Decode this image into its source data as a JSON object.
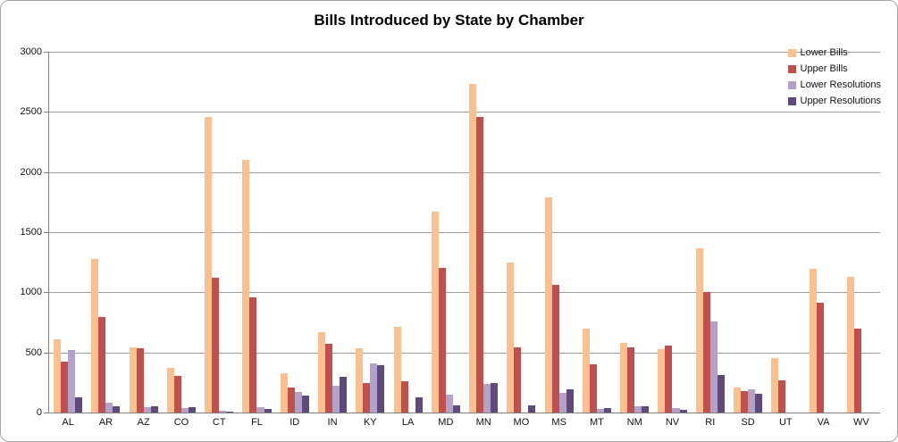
{
  "chart_data": {
    "type": "bar",
    "title": "Bills Introduced by State by Chamber",
    "xlabel": "",
    "ylabel": "",
    "ylim": [
      0,
      3000
    ],
    "yticks": [
      0,
      500,
      1000,
      1500,
      2000,
      2500,
      3000
    ],
    "grid": true,
    "legend_position": "top-right",
    "categories": [
      "AL",
      "AR",
      "AZ",
      "CO",
      "CT",
      "FL",
      "ID",
      "IN",
      "KY",
      "LA",
      "MD",
      "MN",
      "MO",
      "MS",
      "MT",
      "NM",
      "NV",
      "RI",
      "SD",
      "UT",
      "VA",
      "WV"
    ],
    "series": [
      {
        "name": "Lower Bills",
        "color": "#FAC090",
        "values": [
          610,
          1280,
          545,
          370,
          2455,
          2105,
          330,
          670,
          535,
          715,
          1670,
          2730,
          1250,
          1790,
          700,
          580,
          525,
          1365,
          210,
          455,
          1195,
          1130
        ]
      },
      {
        "name": "Upper Bills",
        "color": "#C0504D",
        "values": [
          420,
          795,
          535,
          305,
          1125,
          960,
          205,
          575,
          245,
          260,
          1205,
          2455,
          545,
          1060,
          400,
          545,
          560,
          1005,
          175,
          270,
          915,
          700
        ]
      },
      {
        "name": "Lower Resolutions",
        "color": "#B2A2C7",
        "values": [
          520,
          85,
          45,
          40,
          15,
          45,
          170,
          225,
          410,
          0,
          145,
          235,
          0,
          160,
          30,
          50,
          40,
          755,
          190,
          0,
          0,
          0
        ]
      },
      {
        "name": "Upper Resolutions",
        "color": "#604A7B",
        "values": [
          125,
          50,
          50,
          45,
          10,
          30,
          140,
          300,
          390,
          125,
          60,
          245,
          60,
          190,
          35,
          50,
          25,
          310,
          155,
          0,
          0,
          0
        ]
      }
    ]
  },
  "colors": {
    "gridline": "#9c9c9c",
    "axis": "#808080",
    "border": "#a6a6a6",
    "text": "#111111"
  }
}
